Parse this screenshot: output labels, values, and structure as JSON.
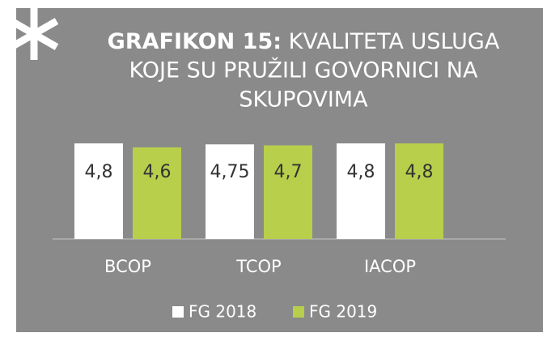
{
  "chart_data": {
    "type": "bar",
    "title": {
      "bold": "GRAFIKON 15:",
      "lines": [
        "KVALITETA USLUGA",
        "KOJE SU PRUŽILI GOVORNICI NA",
        "SKUPOVIMA"
      ]
    },
    "categories": [
      "BCOP",
      "TCOP",
      "IACOP"
    ],
    "series": [
      {
        "name": "FG 2018",
        "color": "#ffffff",
        "values": [
          4.8,
          4.75,
          4.8
        ],
        "value_labels": [
          "4,8",
          "4,75",
          "4,8"
        ]
      },
      {
        "name": "FG 2019",
        "color": "#b8cf4b",
        "values": [
          4.6,
          4.7,
          4.8
        ],
        "value_labels": [
          "4,6",
          "4,7",
          "4,8"
        ]
      }
    ],
    "legend": "bottom"
  }
}
